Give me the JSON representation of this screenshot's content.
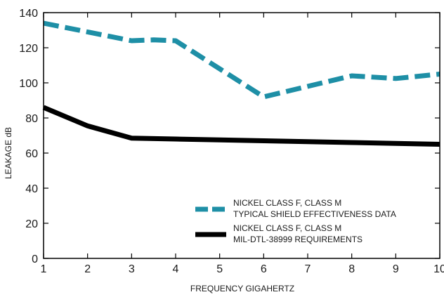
{
  "chart_data": {
    "type": "line",
    "title": "",
    "xlabel": "FREQUENCY GIGAHERTZ",
    "ylabel": "LEAKAGE dB",
    "xlim": [
      1,
      10
    ],
    "ylim": [
      0,
      140
    ],
    "x_ticks": [
      1,
      2,
      3,
      4,
      5,
      6,
      7,
      8,
      9,
      10
    ],
    "y_ticks": [
      0,
      20,
      40,
      60,
      80,
      100,
      120,
      140
    ],
    "grid": false,
    "legend_position": "bottom-right",
    "series": [
      {
        "legend_lines": [
          "NICKEL CLASS F, CLASS M",
          "TYPICAL SHIELD EFFECTIVENESS DATA"
        ],
        "style": "dashed",
        "color": "#1e8fa6",
        "x": [
          1,
          2,
          3,
          3.5,
          4,
          5,
          6,
          7,
          8,
          9,
          10
        ],
        "y": [
          134,
          129,
          124,
          124.5,
          124,
          108,
          92,
          98,
          104,
          102.5,
          105
        ]
      },
      {
        "legend_lines": [
          "NICKEL CLASS F, CLASS M",
          "MIL-DTL-38999 REQUIREMENTS"
        ],
        "style": "solid",
        "color": "#000000",
        "x": [
          1,
          2,
          3,
          4,
          5,
          6,
          7,
          8,
          9,
          10
        ],
        "y": [
          86,
          75.5,
          68.5,
          68,
          67.5,
          67,
          66.5,
          66,
          65.5,
          65
        ]
      }
    ]
  }
}
